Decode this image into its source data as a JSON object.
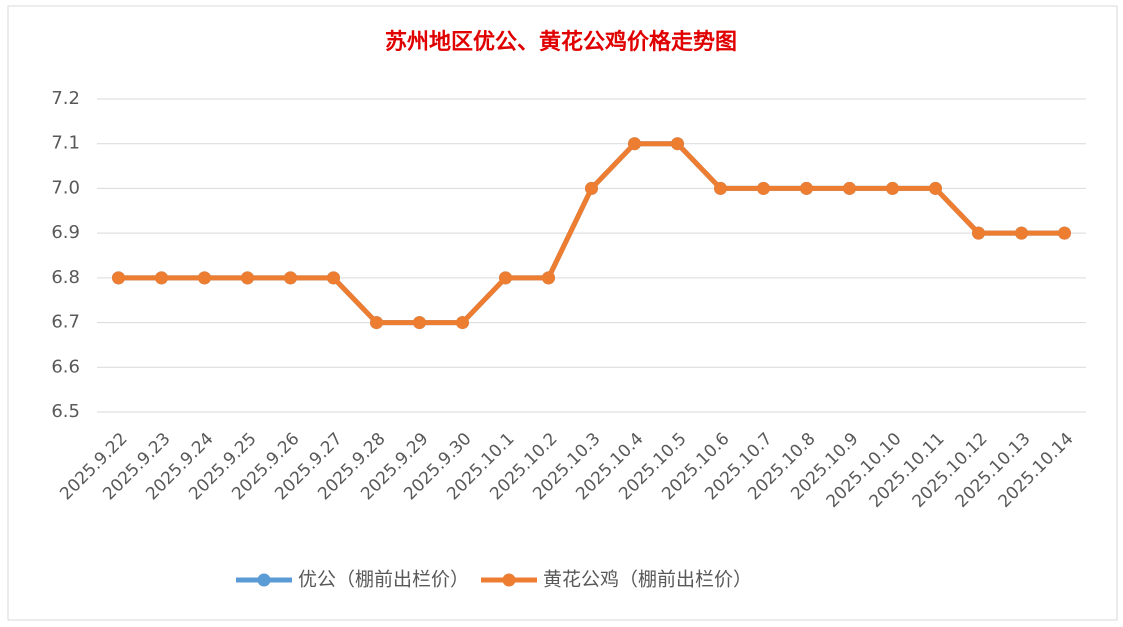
{
  "chart_data": {
    "type": "line",
    "title": "苏州地区优公、黄花公鸡价格走势图",
    "categories": [
      "2025.9.22",
      "2025.9.23",
      "2025.9.24",
      "2025.9.25",
      "2025.9.26",
      "2025.9.27",
      "2025.9.28",
      "2025.9.29",
      "2025.9.30",
      "2025.10.1",
      "2025.10.2",
      "2025.10.3",
      "2025.10.4",
      "2025.10.5",
      "2025.10.6",
      "2025.10.7",
      "2025.10.8",
      "2025.10.9",
      "2025.10.10",
      "2025.10.11",
      "2025.10.12",
      "2025.10.13",
      "2025.10.14"
    ],
    "series": [
      {
        "name": "优公（棚前出栏价）",
        "color": "#5b9bd5",
        "values": [
          6.8,
          6.8,
          6.8,
          6.8,
          6.8,
          6.8,
          6.7,
          6.7,
          6.7,
          6.8,
          6.8,
          7.0,
          7.1,
          7.1,
          7.0,
          7.0,
          7.0,
          7.0,
          7.0,
          7.0,
          6.9,
          6.9,
          6.9
        ]
      },
      {
        "name": "黄花公鸡（棚前出栏价）",
        "color": "#ed7d31",
        "values": [
          6.8,
          6.8,
          6.8,
          6.8,
          6.8,
          6.8,
          6.7,
          6.7,
          6.7,
          6.8,
          6.8,
          7.0,
          7.1,
          7.1,
          7.0,
          7.0,
          7.0,
          7.0,
          7.0,
          7.0,
          6.9,
          6.9,
          6.9
        ]
      }
    ],
    "ylim": [
      6.5,
      7.2
    ],
    "yticks": [
      6.5,
      6.6,
      6.7,
      6.8,
      6.9,
      {
        "value": 7.0,
        "label": "7.0"
      },
      7.1,
      7.2
    ],
    "grid": true,
    "legend": "bottom"
  }
}
